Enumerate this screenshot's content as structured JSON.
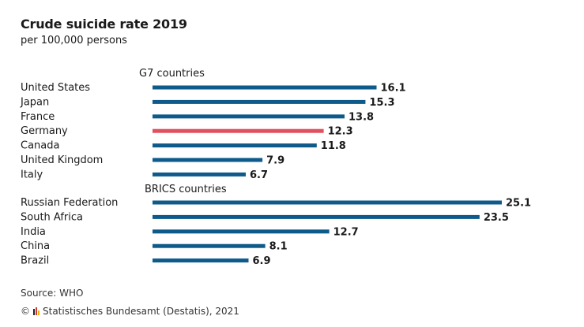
{
  "chart_data": {
    "type": "bar",
    "orientation": "horizontal",
    "title": "Crude suicide rate 2019",
    "subtitle": "per 100,000 persons",
    "groups": [
      {
        "name": "G7 countries",
        "items": [
          {
            "label": "United States",
            "value": 16.1,
            "display": "16.1"
          },
          {
            "label": "Japan",
            "value": 15.3,
            "display": "15.3"
          },
          {
            "label": "France",
            "value": 13.8,
            "display": "13.8"
          },
          {
            "label": "Germany",
            "value": 12.3,
            "display": "12.3",
            "highlight": true
          },
          {
            "label": "Canada",
            "value": 11.8,
            "display": "11.8"
          },
          {
            "label": "United Kingdom",
            "value": 7.9,
            "display": "7.9"
          },
          {
            "label": "Italy",
            "value": 6.7,
            "display": "6.7"
          }
        ]
      },
      {
        "name": "BRICS countries",
        "items": [
          {
            "label": "Russian Federation",
            "value": 25.1,
            "display": "25.1"
          },
          {
            "label": "South Africa",
            "value": 23.5,
            "display": "23.5"
          },
          {
            "label": "India",
            "value": 12.7,
            "display": "12.7"
          },
          {
            "label": "China",
            "value": 8.1,
            "display": "8.1"
          },
          {
            "label": "Brazil",
            "value": 6.9,
            "display": "6.9"
          }
        ]
      }
    ],
    "colors": {
      "bar": "#0e5a8a",
      "highlight": "#e0505f"
    },
    "xlim": [
      0,
      25.1
    ]
  },
  "footer": {
    "source": "Source: WHO",
    "copyright_symbol": "©",
    "copyright_text": "Statistisches Bundesamt (Destatis), 2021"
  },
  "logo_colors": [
    "#222222",
    "#d0343d",
    "#e8b400"
  ]
}
